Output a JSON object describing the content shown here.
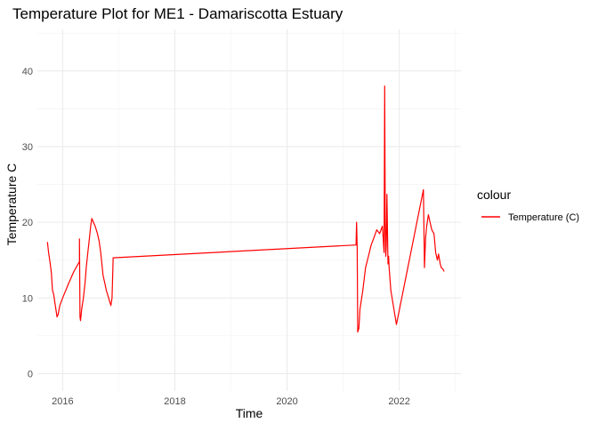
{
  "chart_data": {
    "type": "line",
    "title": "Temperature Plot for ME1 - Damariscotta Estuary",
    "xlabel": "Time",
    "ylabel": "Temperature C",
    "x_ticks": [
      "2016",
      "2018",
      "2020",
      "2022"
    ],
    "y_ticks": [
      0,
      10,
      20,
      30,
      40
    ],
    "xlim": [
      2015.55,
      2023.1
    ],
    "ylim": [
      -2.3,
      45.5
    ],
    "grid": true,
    "legend": {
      "title": "colour",
      "position": "right",
      "entries": [
        {
          "label": "Temperature (C)",
          "color": "#ff0000"
        }
      ]
    },
    "series": [
      {
        "name": "Temperature (C)",
        "color": "#ff0000",
        "x": [
          2015.73,
          2015.75,
          2015.78,
          2015.8,
          2015.82,
          2015.84,
          2015.86,
          2015.88,
          2015.9,
          2015.92,
          2015.95,
          2016.0,
          2016.1,
          2016.2,
          2016.3,
          2016.3,
          2016.31,
          2016.32,
          2016.34,
          2016.37,
          2016.4,
          2016.42,
          2016.45,
          2016.48,
          2016.5,
          2016.52,
          2016.55,
          2016.58,
          2016.6,
          2016.62,
          2016.65,
          2016.68,
          2016.7,
          2016.72,
          2016.75,
          2016.78,
          2016.8,
          2016.82,
          2016.84,
          2016.86,
          2016.88,
          2016.9,
          2016.9,
          2021.23,
          2021.24,
          2021.25,
          2021.26,
          2021.28,
          2021.3,
          2021.35,
          2021.4,
          2021.45,
          2021.5,
          2021.55,
          2021.6,
          2021.65,
          2021.7,
          2021.73,
          2021.74,
          2021.75,
          2021.76,
          2021.77,
          2021.78,
          2021.8,
          2021.81,
          2021.82,
          2021.85,
          2021.95,
          2022.43,
          2022.45,
          2022.47,
          2022.49,
          2022.52,
          2022.55,
          2022.58,
          2022.62,
          2022.65,
          2022.68,
          2022.7,
          2022.73,
          2022.75,
          2022.78,
          2022.8
        ],
        "values": [
          17.4,
          16.0,
          14.5,
          13.2,
          11.0,
          10.5,
          9.5,
          8.5,
          7.5,
          7.8,
          9.0,
          10.0,
          11.8,
          13.5,
          14.8,
          17.8,
          7.5,
          7.0,
          8.5,
          10.0,
          12.0,
          14.0,
          16.0,
          18.0,
          19.5,
          20.5,
          20.0,
          19.5,
          19.0,
          18.5,
          17.5,
          16.0,
          14.5,
          13.0,
          12.0,
          11.0,
          10.5,
          10.0,
          9.5,
          9.0,
          10.0,
          15.0,
          15.3,
          17.0,
          20.0,
          16.5,
          5.5,
          6.0,
          8.5,
          11.0,
          14.0,
          15.5,
          17.0,
          18.0,
          19.0,
          18.5,
          19.5,
          16.0,
          38.0,
          20.0,
          15.5,
          17.0,
          23.7,
          14.5,
          15.5,
          14.0,
          11.0,
          6.5,
          24.3,
          14.0,
          18.0,
          19.5,
          21.0,
          20.0,
          19.0,
          18.5,
          16.0,
          15.0,
          15.8,
          14.5,
          14.0,
          13.8,
          13.5
        ]
      }
    ]
  }
}
